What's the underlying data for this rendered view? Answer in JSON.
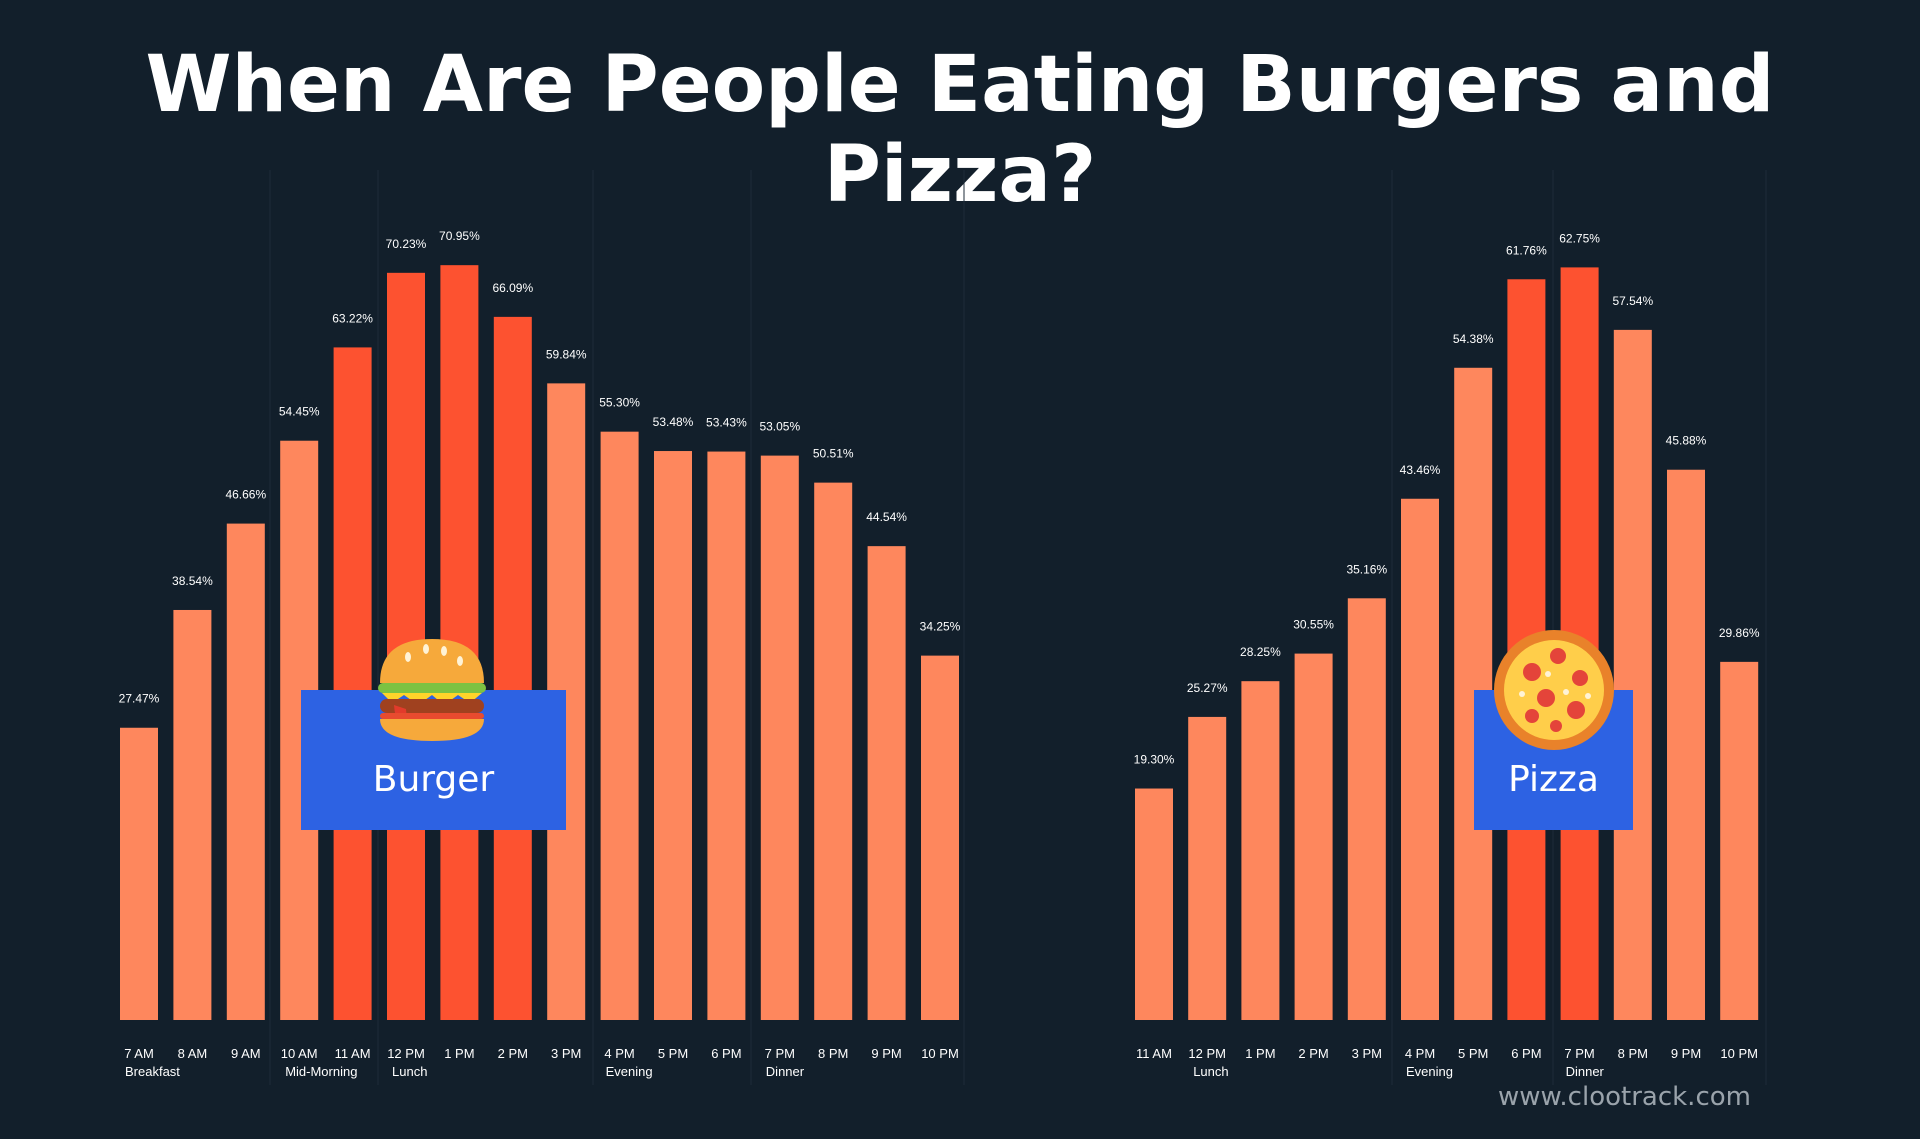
{
  "title": "When Are People Eating Burgers and Pizza?",
  "watermark": "www.clootrack.com",
  "colors": {
    "background": "#121f2b",
    "bar_normal": "#fe875d",
    "bar_peak": "#fd5230",
    "badge": "#2d62e3"
  },
  "chart_data": [
    {
      "type": "bar",
      "badge_label": "Burger",
      "icon": "burger-icon",
      "categories": [
        "7 AM",
        "8 AM",
        "9 AM",
        "10 AM",
        "11 AM",
        "12 PM",
        "1 PM",
        "2 PM",
        "3 PM",
        "4 PM",
        "5 PM",
        "6 PM",
        "7 PM",
        "8 PM",
        "9 PM",
        "10 PM"
      ],
      "sublabels": [
        "Breakfast",
        "",
        "",
        "Mid-Morning",
        "",
        "Lunch",
        "",
        "",
        "",
        "Evening",
        "",
        "",
        "Dinner",
        "",
        "",
        ""
      ],
      "values": [
        27.47,
        38.54,
        46.66,
        54.45,
        63.22,
        70.23,
        70.95,
        66.09,
        59.84,
        55.3,
        53.48,
        53.43,
        53.05,
        50.51,
        44.54,
        34.25
      ],
      "value_labels": [
        "27.47%",
        "38.54%",
        "46.66%",
        "54.45%",
        "63.22%",
        "70.23%",
        "70.95%",
        "66.09%",
        "59.84%",
        "55.30%",
        "53.48%",
        "53.43%",
        "53.05%",
        "50.51%",
        "44.54%",
        "34.25%"
      ],
      "highlighted": [
        false,
        false,
        false,
        false,
        true,
        true,
        true,
        true,
        false,
        false,
        false,
        false,
        false,
        false,
        false,
        false
      ],
      "ylim": [
        0,
        72
      ]
    },
    {
      "type": "bar",
      "badge_label": "Pizza",
      "icon": "pizza-icon",
      "categories": [
        "11 AM",
        "12 PM",
        "1 PM",
        "2 PM",
        "3 PM",
        "4 PM",
        "5 PM",
        "6 PM",
        "7 PM",
        "8 PM",
        "9 PM",
        "10 PM"
      ],
      "sublabels": [
        "",
        "Lunch",
        "",
        "",
        "",
        "Evening",
        "",
        "",
        "Dinner",
        "",
        "",
        ""
      ],
      "values": [
        19.3,
        25.27,
        28.25,
        30.55,
        35.16,
        43.46,
        54.38,
        61.76,
        62.75,
        57.54,
        45.88,
        29.86
      ],
      "value_labels": [
        "19.30%",
        "25.27%",
        "28.25%",
        "30.55%",
        "35.16%",
        "43.46%",
        "54.38%",
        "61.76%",
        "62.75%",
        "57.54%",
        "45.88%",
        "29.86%"
      ],
      "highlighted": [
        false,
        false,
        false,
        false,
        false,
        false,
        false,
        true,
        true,
        false,
        false,
        false
      ],
      "ylim": [
        0,
        63.7
      ]
    }
  ]
}
